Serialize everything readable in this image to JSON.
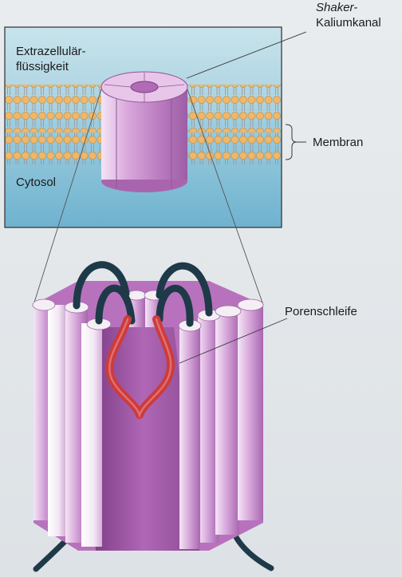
{
  "labels": {
    "channel_name_line1": "Shaker-",
    "channel_name_line2": "Kaliumkanal",
    "extracellular_line1": "Extrazellulär-",
    "extracellular_line2": "flüssigkeit",
    "membrane": "Membran",
    "cytosol": "Cytosol",
    "pore_loop": "Porenschleife"
  },
  "colors": {
    "extracellular": "#b8dbe6",
    "cytosol": "#84bfd6",
    "lipid_head": "#f0b768",
    "channel": "#d49ad6",
    "pore_loop": "#cd3b3b",
    "linker": "#1e3a48"
  }
}
